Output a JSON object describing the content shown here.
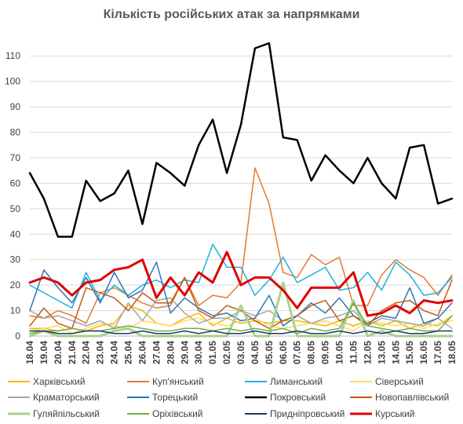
{
  "title": "Кількість російських атак за напрямками",
  "chart_data": {
    "type": "line",
    "title": "Кількість російських атак за напрямками",
    "categories": [
      "18.04",
      "19.04",
      "20.04",
      "21.04",
      "22.04",
      "23.04",
      "24.04",
      "25.04",
      "26.04",
      "27.04",
      "28.04",
      "29.04",
      "30.04",
      "01.05",
      "02.05",
      "03.05",
      "04.05",
      "05.05",
      "06.05",
      "07.05",
      "08.05",
      "09.05",
      "10.05",
      "11.05",
      "12.05",
      "13.05",
      "14.05",
      "15.05",
      "16.05",
      "17.05",
      "18.05"
    ],
    "x_tick_labels": [
      "18.04",
      "19.04",
      "20.04",
      "21.04",
      "22.04",
      "23.04",
      "24.04",
      "25.04",
      "26.04",
      "27.04",
      "28.04",
      "29.04",
      "30.04",
      "01.05",
      "02.05",
      "03.05",
      "04.05",
      "05.05",
      "06.05",
      "07.05",
      "08.05",
      "09.05",
      "10.05",
      "11.05",
      "12.05",
      "13.05",
      "14.05",
      "15.05",
      "16.05",
      "17.05",
      "18.05"
    ],
    "y_ticks": [
      0,
      10,
      20,
      30,
      40,
      50,
      60,
      70,
      80,
      90,
      100,
      110
    ],
    "ylim": [
      0,
      115
    ],
    "grid": true,
    "legend_position": "bottom",
    "series": [
      {
        "name": "Харківський",
        "color": "#f2b800",
        "width": 1.5,
        "values": [
          3,
          3,
          2,
          3,
          2,
          4,
          5,
          12,
          10,
          5,
          4,
          7,
          9,
          4,
          7,
          5,
          6,
          5,
          6,
          6,
          5,
          4,
          6,
          4,
          6,
          4,
          6,
          3,
          5,
          4,
          8
        ]
      },
      {
        "name": "Куп'янський",
        "color": "#e07b39",
        "width": 1.5,
        "values": [
          8,
          7,
          10,
          8,
          5,
          17,
          19,
          16,
          13,
          11,
          12,
          23,
          12,
          16,
          15,
          21,
          66,
          52,
          25,
          23,
          32,
          28,
          31,
          12,
          12,
          24,
          30,
          26,
          23,
          16,
          24
        ]
      },
      {
        "name": "Лиманський",
        "color": "#1fb2e0",
        "width": 1.5,
        "values": [
          20,
          17,
          14,
          11,
          25,
          14,
          20,
          16,
          20,
          22,
          19,
          22,
          21,
          36,
          27,
          27,
          16,
          22,
          31,
          21,
          24,
          27,
          18,
          19,
          25,
          18,
          29,
          24,
          16,
          17,
          23
        ]
      },
      {
        "name": "Сіверський",
        "color": "#ffd966",
        "width": 1.5,
        "values": [
          2,
          3,
          4,
          1,
          3,
          5,
          4,
          3,
          6,
          5,
          4,
          6,
          7,
          5,
          4,
          6,
          7,
          4,
          3,
          4,
          5,
          6,
          4,
          2,
          6,
          5,
          4,
          5,
          3,
          5,
          6
        ]
      },
      {
        "name": "Краматорський",
        "color": "#a6a6a6",
        "width": 1.5,
        "values": [
          10,
          7,
          8,
          6,
          4,
          6,
          3,
          13,
          6,
          14,
          15,
          9,
          5,
          7,
          7,
          10,
          8,
          10,
          6,
          8,
          5,
          7,
          8,
          10,
          4,
          7,
          6,
          5,
          4,
          7,
          3
        ]
      },
      {
        "name": "Торецький",
        "color": "#2e75b6",
        "width": 1.5,
        "values": [
          10,
          26,
          19,
          13,
          23,
          13,
          25,
          15,
          18,
          29,
          9,
          15,
          11,
          8,
          9,
          6,
          7,
          16,
          4,
          8,
          13,
          9,
          15,
          8,
          5,
          8,
          7,
          19,
          5,
          7,
          13
        ]
      },
      {
        "name": "Покровський",
        "color": "#000000",
        "width": 2.5,
        "values": [
          64,
          54,
          39,
          39,
          61,
          53,
          56,
          65,
          44,
          68,
          64,
          59,
          75,
          85,
          64,
          83,
          113,
          115,
          78,
          77,
          61,
          71,
          65,
          60,
          70,
          60,
          54,
          74,
          75,
          52,
          54
        ]
      },
      {
        "name": "Новопавлівський",
        "color": "#c55a11",
        "width": 1.5,
        "values": [
          4,
          11,
          5,
          3,
          19,
          17,
          15,
          10,
          17,
          13,
          13,
          23,
          10,
          7,
          12,
          10,
          6,
          3,
          6,
          8,
          12,
          14,
          6,
          8,
          4,
          10,
          13,
          14,
          10,
          8,
          22
        ]
      },
      {
        "name": "Гуляйпільський",
        "color": "#a9d18e",
        "width": 3,
        "values": [
          0,
          2,
          0,
          0,
          0,
          0,
          2,
          3,
          0,
          0,
          0,
          0,
          0,
          0,
          0,
          12,
          0,
          0,
          21,
          0,
          0,
          0,
          0,
          14,
          0,
          2,
          0,
          0,
          0,
          0,
          0
        ]
      },
      {
        "name": "Оріхівський",
        "color": "#70ad47",
        "width": 1.5,
        "values": [
          1,
          2,
          2,
          3,
          2,
          2,
          3,
          4,
          3,
          2,
          2,
          3,
          3,
          2,
          3,
          2,
          3,
          2,
          3,
          1,
          3,
          2,
          3,
          13,
          4,
          3,
          2,
          3,
          2,
          2,
          8
        ]
      },
      {
        "name": "Придніпровський",
        "color": "#1f3864",
        "width": 1.5,
        "values": [
          2,
          2,
          1,
          1,
          2,
          2,
          1,
          1,
          2,
          1,
          1,
          2,
          1,
          2,
          1,
          1,
          2,
          1,
          1,
          2,
          1,
          1,
          2,
          1,
          2,
          1,
          2,
          1,
          1,
          2,
          2
        ]
      },
      {
        "name": "Курський",
        "color": "#e00000",
        "width": 3,
        "values": [
          21,
          23,
          21,
          16,
          21,
          22,
          26,
          27,
          30,
          15,
          23,
          16,
          25,
          21,
          33,
          20,
          23,
          23,
          18,
          11,
          19,
          19,
          19,
          25,
          8,
          9,
          12,
          9,
          14,
          13,
          14
        ]
      }
    ]
  }
}
